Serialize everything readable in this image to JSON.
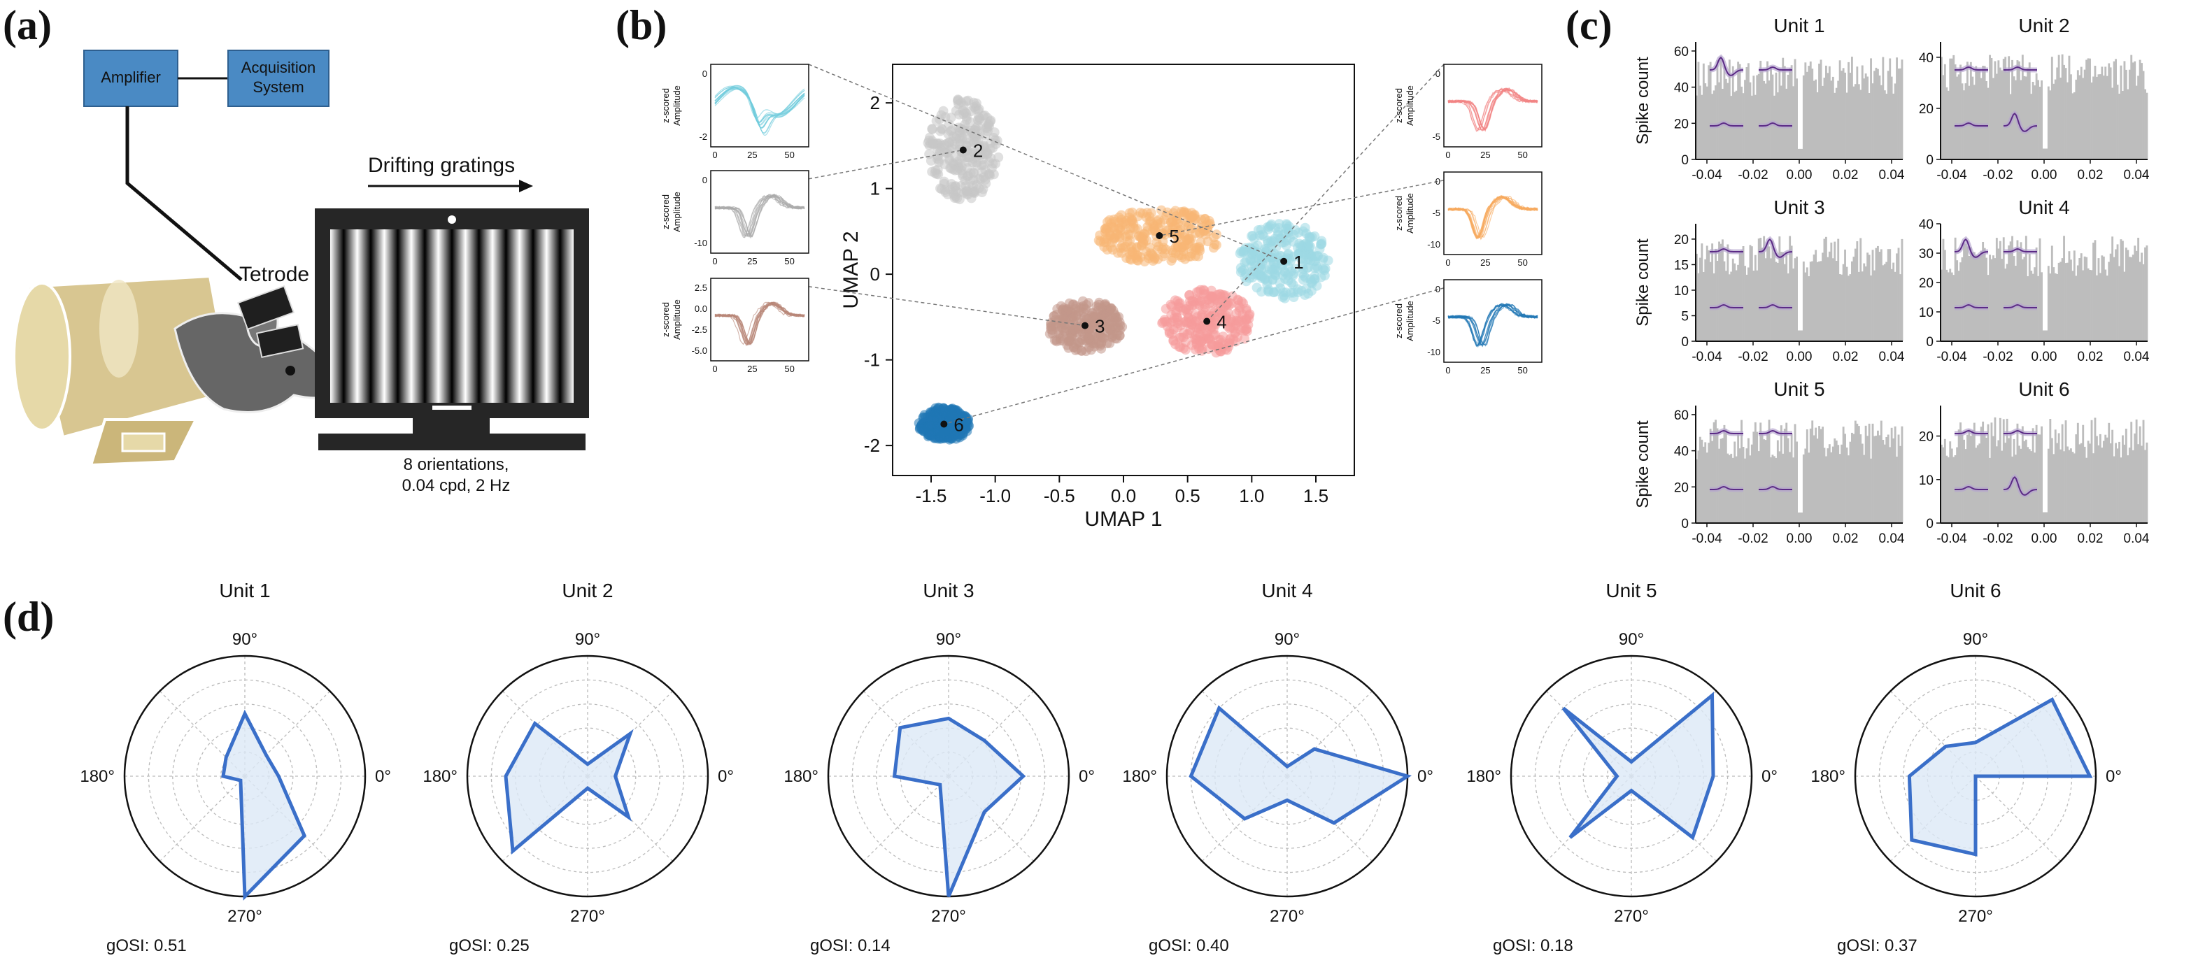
{
  "panels": {
    "a": "(a)",
    "b": "(b)",
    "c": "(c)",
    "d": "(d)"
  },
  "setup": {
    "amplifier": "Amplifier",
    "acquisition_line1": "Acquisition",
    "acquisition_line2": "System",
    "drifting_gratings": "Drifting gratings",
    "tetrode": "Tetrode",
    "stim_line1": "8 orientations,",
    "stim_line2": "0.04 cpd, 2 Hz",
    "colors": {
      "box": "#4a8ac4",
      "monitor": "#262626",
      "mouse": "#666666",
      "tube": "#d8c691"
    }
  },
  "umap": {
    "xlabel": "UMAP 1",
    "ylabel": "UMAP 2",
    "xticks": [
      -1.5,
      -1.0,
      -0.5,
      0.0,
      0.5,
      1.0,
      1.5
    ],
    "yticks": [
      -2,
      -1,
      0,
      1,
      2
    ],
    "xlim": [
      -1.8,
      1.8
    ],
    "ylim": [
      -2.35,
      2.45
    ],
    "clusters": [
      {
        "label": "1",
        "x": 1.25,
        "y": 0.15,
        "color": "#9dd8e3"
      },
      {
        "label": "2",
        "x": -1.25,
        "y": 1.45,
        "color": "#c6c6c6"
      },
      {
        "label": "3",
        "x": -0.3,
        "y": -0.6,
        "color": "#c3978a"
      },
      {
        "label": "4",
        "x": 0.65,
        "y": -0.55,
        "color": "#f59a9a"
      },
      {
        "label": "5",
        "x": 0.28,
        "y": 0.45,
        "color": "#f8b675"
      },
      {
        "label": "6",
        "x": -1.4,
        "y": -1.75,
        "color": "#1f77b4"
      }
    ],
    "waveform_ylabel_line1": "z-scored",
    "waveform_ylabel_line2": "Amplitude",
    "waveform_xticks": [
      "0",
      "25",
      "50"
    ],
    "waveforms": [
      {
        "unit": 1,
        "color": "#6fcbdc",
        "yticks": [
          "0",
          "-2"
        ]
      },
      {
        "unit": 2,
        "color": "#aaaaaa",
        "yticks": [
          "0",
          "-10"
        ]
      },
      {
        "unit": 3,
        "color": "#b88677",
        "yticks": [
          "2.5",
          "0.0",
          "-2.5",
          "-5.0"
        ]
      },
      {
        "unit": 4,
        "color": "#f28383",
        "yticks": [
          "0",
          "-5"
        ]
      },
      {
        "unit": 5,
        "color": "#f6a85c",
        "yticks": [
          "0",
          "-5",
          "-10"
        ]
      },
      {
        "unit": 6,
        "color": "#1f77b4",
        "yticks": [
          "0",
          "-5",
          "-10"
        ]
      }
    ]
  },
  "acg": {
    "ylabel": "Spike count",
    "xticks": [
      "-0.04",
      "-0.02",
      "0.00",
      "0.02",
      "0.04"
    ],
    "bar_color": "#bdbdbd",
    "inset_color": "#5b2a86",
    "units": [
      {
        "title": "Unit 1",
        "yticks": [
          "0",
          "20",
          "40",
          "60"
        ],
        "ymax": 65
      },
      {
        "title": "Unit 2",
        "yticks": [
          "0",
          "20",
          "40"
        ],
        "ymax": 46
      },
      {
        "title": "Unit 3",
        "yticks": [
          "0",
          "5",
          "10",
          "15",
          "20"
        ],
        "ymax": 23
      },
      {
        "title": "Unit 4",
        "yticks": [
          "0",
          "10",
          "20",
          "30",
          "40"
        ],
        "ymax": 40
      },
      {
        "title": "Unit 5",
        "yticks": [
          "0",
          "20",
          "40",
          "60"
        ],
        "ymax": 65
      },
      {
        "title": "Unit 6",
        "yticks": [
          "0",
          "10",
          "20"
        ],
        "ymax": 27
      }
    ]
  },
  "polar": {
    "angle_labels": {
      "a90": "90°",
      "a0": "0°",
      "a180": "180°",
      "a270": "270°"
    },
    "line_color": "#3a6fc9",
    "fill_color": "#dce8f6",
    "angles_deg": [
      0,
      45,
      90,
      135,
      180,
      225,
      270,
      315
    ],
    "units": [
      {
        "title": "Unit 1",
        "gosi": "gOSI: 0.51",
        "r": [
          0.28,
          0.25,
          0.52,
          0.22,
          0.18,
          0.05,
          1.0,
          0.7
        ]
      },
      {
        "title": "Unit 2",
        "gosi": "gOSI: 0.25",
        "r": [
          0.23,
          0.5,
          0.1,
          0.62,
          0.68,
          0.88,
          0.1,
          0.48
        ]
      },
      {
        "title": "Unit 3",
        "gosi": "gOSI: 0.14",
        "r": [
          0.62,
          0.42,
          0.48,
          0.57,
          0.45,
          0.1,
          1.0,
          0.42
        ]
      },
      {
        "title": "Unit 4",
        "gosi": "gOSI: 0.40",
        "r": [
          1.0,
          0.32,
          0.08,
          0.8,
          0.8,
          0.5,
          0.2,
          0.55
        ]
      },
      {
        "title": "Unit 5",
        "gosi": "gOSI: 0.18",
        "r": [
          0.68,
          0.95,
          0.12,
          0.8,
          0.12,
          0.72,
          0.12,
          0.72
        ]
      },
      {
        "title": "Unit 6",
        "gosi": "gOSI: 0.37",
        "r": [
          0.95,
          0.9,
          0.28,
          0.35,
          0.55,
          0.75,
          0.65,
          0.0
        ]
      }
    ]
  }
}
